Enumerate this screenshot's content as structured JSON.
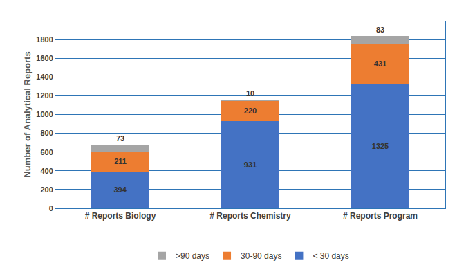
{
  "chart_data": {
    "type": "bar",
    "stacked": true,
    "data_labels": true,
    "grid": true,
    "legend": "bottom",
    "y_label": "Number of Analytical Reports",
    "categories": [
      "# Reports Biology",
      "# Reports Chemistry",
      "# Reports Program"
    ],
    "series": [
      {
        "name": "< 30 days",
        "color": "#4472c4",
        "values": [
          394,
          931,
          1325
        ]
      },
      {
        "name": "30-90 days",
        "color": "#ed7d31",
        "values": [
          211,
          220,
          431
        ]
      },
      {
        "name": ">90 days",
        "color": "#a5a5a5",
        "values": [
          73,
          10,
          83
        ]
      }
    ],
    "ylim": [
      0,
      2000
    ],
    "yticks": [
      0,
      200,
      400,
      600,
      800,
      1000,
      1200,
      1400,
      1600,
      1800
    ]
  }
}
